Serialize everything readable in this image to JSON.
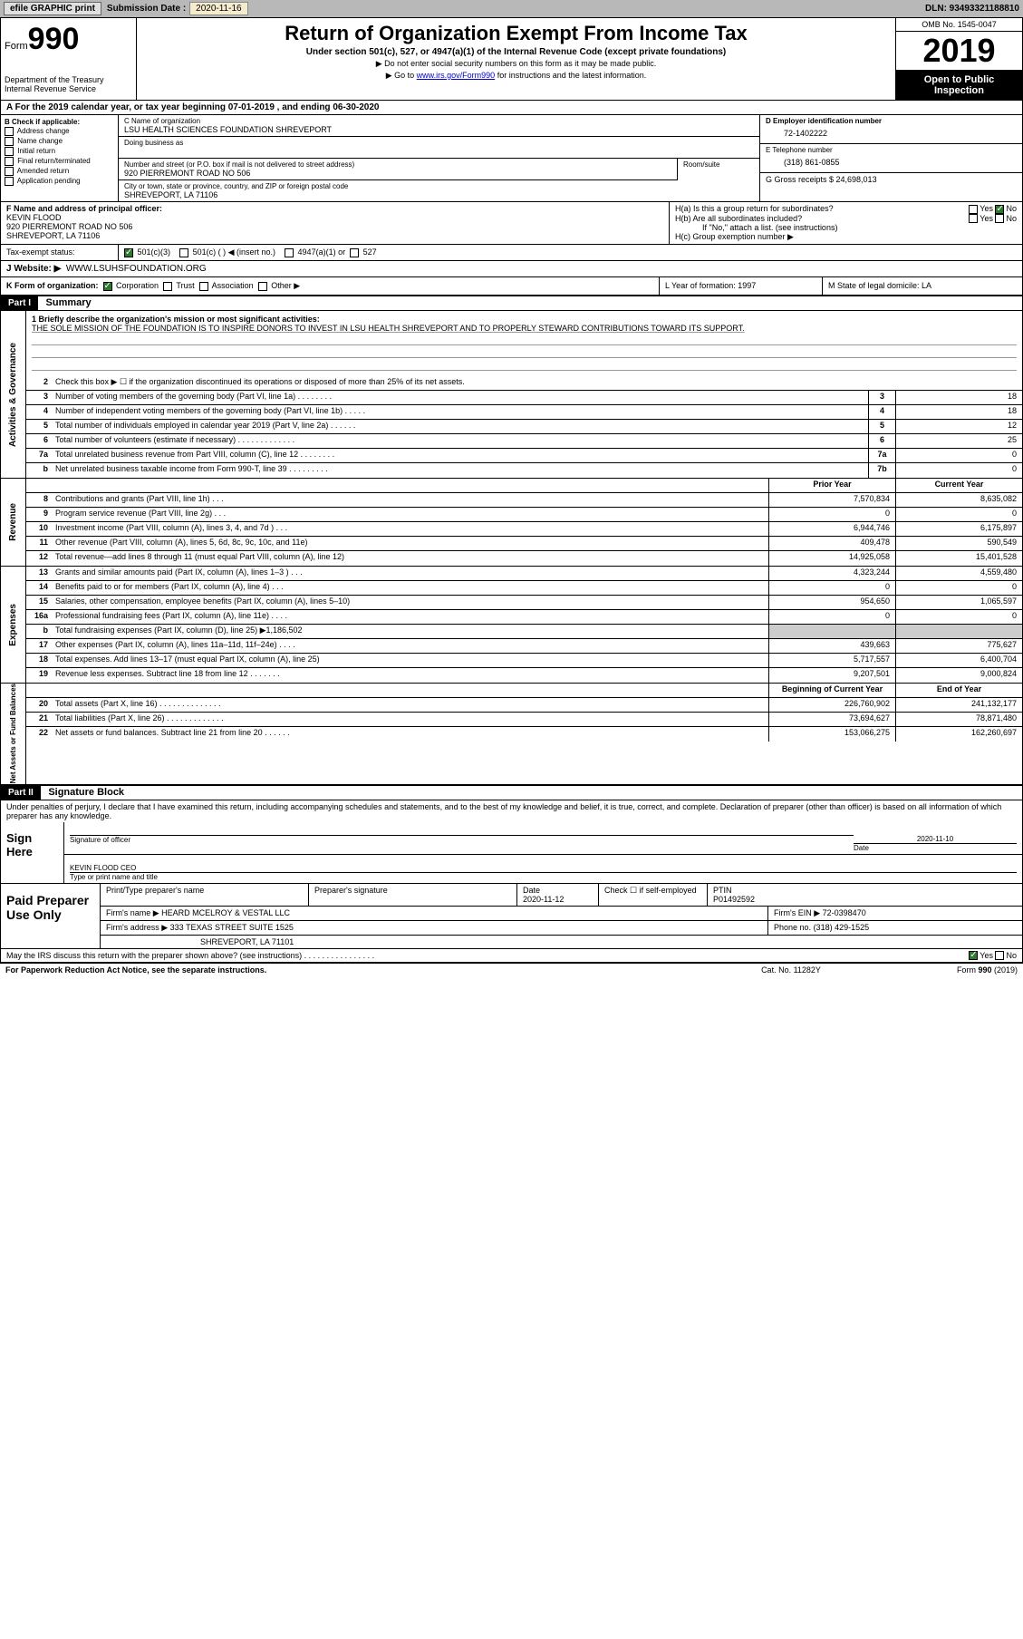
{
  "top": {
    "efile": "efile GRAPHIC print",
    "sub_label": "Submission Date :",
    "sub_date": "2020-11-16",
    "dln": "DLN: 93493321188810"
  },
  "header": {
    "form_word": "Form",
    "form_num": "990",
    "dept": "Department of the Treasury\nInternal Revenue Service",
    "title": "Return of Organization Exempt From Income Tax",
    "subtitle": "Under section 501(c), 527, or 4947(a)(1) of the Internal Revenue Code (except private foundations)",
    "instr1": "▶ Do not enter social security numbers on this form as it may be made public.",
    "instr2_pre": "▶ Go to ",
    "instr2_link": "www.irs.gov/Form990",
    "instr2_post": " for instructions and the latest information.",
    "omb": "OMB No. 1545-0047",
    "year": "2019",
    "inspect": "Open to Public Inspection"
  },
  "rowA": "A For the 2019 calendar year, or tax year beginning 07-01-2019   , and ending 06-30-2020",
  "colB": {
    "title": "B Check if applicable:",
    "items": [
      "Address change",
      "Name change",
      "Initial return",
      "Final return/terminated",
      "Amended return",
      "Application pending"
    ]
  },
  "colC": {
    "name_label": "C Name of organization",
    "name": "LSU HEALTH SCIENCES FOUNDATION SHREVEPORT",
    "dba_label": "Doing business as",
    "addr_label": "Number and street (or P.O. box if mail is not delivered to street address)",
    "room_label": "Room/suite",
    "addr": "920 PIERREMONT ROAD NO 506",
    "city_label": "City or town, state or province, country, and ZIP or foreign postal code",
    "city": "SHREVEPORT, LA  71106"
  },
  "colD": {
    "label": "D Employer identification number",
    "value": "72-1402222"
  },
  "colE": {
    "label": "E Telephone number",
    "value": "(318) 861-0855"
  },
  "colG": {
    "label": "G Gross receipts $ 24,698,013"
  },
  "colF": {
    "label": "F  Name and address of principal officer:",
    "name": "KEVIN FLOOD",
    "addr": "920 PIERREMONT ROAD NO 506\nSHREVEPORT, LA  71106"
  },
  "colH": {
    "a": "H(a)  Is this a group return for subordinates?",
    "b": "H(b)  Are all subordinates included?",
    "b_note": "If \"No,\" attach a list. (see instructions)",
    "c": "H(c)  Group exemption number ▶",
    "yes": "Yes",
    "no": "No"
  },
  "rowI": {
    "label": "Tax-exempt status:",
    "opt1": "501(c)(3)",
    "opt2": "501(c) (   ) ◀ (insert no.)",
    "opt3": "4947(a)(1) or",
    "opt4": "527"
  },
  "rowJ": {
    "label": "J Website: ▶",
    "value": "WWW.LSUHSFOUNDATION.ORG"
  },
  "rowK": {
    "label": "K Form of organization:",
    "opts": [
      "Corporation",
      "Trust",
      "Association",
      "Other ▶"
    ],
    "l": "L Year of formation: 1997",
    "m": "M State of legal domicile: LA"
  },
  "part1": {
    "header": "Part I",
    "title": "Summary",
    "line1_label": "1  Briefly describe the organization's mission or most significant activities:",
    "mission": "THE SOLE MISSION OF THE FOUNDATION IS TO INSPIRE DONORS TO INVEST IN LSU HEALTH SHREVEPORT AND TO PROPERLY STEWARD CONTRIBUTIONS TOWARD ITS SUPPORT.",
    "line2": "Check this box ▶ ☐ if the organization discontinued its operations or disposed of more than 25% of its net assets."
  },
  "sections": {
    "governance": "Activities & Governance",
    "revenue": "Revenue",
    "expenses": "Expenses",
    "netassets": "Net Assets or Fund Balances"
  },
  "gov_lines": [
    {
      "n": "3",
      "desc": "Number of voting members of the governing body (Part VI, line 1a)  .   .   .   .   .   .   .   .",
      "box": "3",
      "val": "18"
    },
    {
      "n": "4",
      "desc": "Number of independent voting members of the governing body (Part VI, line 1b)  .   .   .   .   .",
      "box": "4",
      "val": "18"
    },
    {
      "n": "5",
      "desc": "Total number of individuals employed in calendar year 2019 (Part V, line 2a)  .   .   .   .   .   .",
      "box": "5",
      "val": "12"
    },
    {
      "n": "6",
      "desc": "Total number of volunteers (estimate if necessary)   .   .   .   .   .   .   .   .   .   .   .   .   .",
      "box": "6",
      "val": "25"
    },
    {
      "n": "7a",
      "desc": "Total unrelated business revenue from Part VIII, column (C), line 12  .   .   .   .   .   .   .   .",
      "box": "7a",
      "val": "0"
    },
    {
      "n": "b",
      "desc": "Net unrelated business taxable income from Form 990-T, line 39   .   .   .   .   .   .   .   .   .",
      "box": "7b",
      "val": "0"
    }
  ],
  "col_headers": {
    "prior": "Prior Year",
    "current": "Current Year",
    "begin": "Beginning of Current Year",
    "end": "End of Year"
  },
  "rev_lines": [
    {
      "n": "8",
      "desc": "Contributions and grants (Part VIII, line 1h)   .   .   .",
      "py": "7,570,834",
      "cy": "8,635,082"
    },
    {
      "n": "9",
      "desc": "Program service revenue (Part VIII, line 2g)   .   .   .",
      "py": "0",
      "cy": "0"
    },
    {
      "n": "10",
      "desc": "Investment income (Part VIII, column (A), lines 3, 4, and 7d )   .   .   .",
      "py": "6,944,746",
      "cy": "6,175,897"
    },
    {
      "n": "11",
      "desc": "Other revenue (Part VIII, column (A), lines 5, 6d, 8c, 9c, 10c, and 11e)",
      "py": "409,478",
      "cy": "590,549"
    },
    {
      "n": "12",
      "desc": "Total revenue—add lines 8 through 11 (must equal Part VIII, column (A), line 12)",
      "py": "14,925,058",
      "cy": "15,401,528"
    }
  ],
  "exp_lines": [
    {
      "n": "13",
      "desc": "Grants and similar amounts paid (Part IX, column (A), lines 1–3 )   .   .   .",
      "py": "4,323,244",
      "cy": "4,559,480"
    },
    {
      "n": "14",
      "desc": "Benefits paid to or for members (Part IX, column (A), line 4)   .   .   .",
      "py": "0",
      "cy": "0"
    },
    {
      "n": "15",
      "desc": "Salaries, other compensation, employee benefits (Part IX, column (A), lines 5–10)",
      "py": "954,650",
      "cy": "1,065,597"
    },
    {
      "n": "16a",
      "desc": "Professional fundraising fees (Part IX, column (A), line 11e)   .   .   .   .",
      "py": "0",
      "cy": "0"
    },
    {
      "n": "b",
      "desc": "Total fundraising expenses (Part IX, column (D), line 25) ▶1,186,502",
      "py": "",
      "cy": "",
      "shaded": true
    },
    {
      "n": "17",
      "desc": "Other expenses (Part IX, column (A), lines 11a–11d, 11f–24e)   .   .   .   .",
      "py": "439,663",
      "cy": "775,627"
    },
    {
      "n": "18",
      "desc": "Total expenses. Add lines 13–17 (must equal Part IX, column (A), line 25)",
      "py": "5,717,557",
      "cy": "6,400,704"
    },
    {
      "n": "19",
      "desc": "Revenue less expenses. Subtract line 18 from line 12 .   .   .   .   .   .   .",
      "py": "9,207,501",
      "cy": "9,000,824"
    }
  ],
  "net_lines": [
    {
      "n": "20",
      "desc": "Total assets (Part X, line 16)  .   .   .   .   .   .   .   .   .   .   .   .   .   .",
      "py": "226,760,902",
      "cy": "241,132,177"
    },
    {
      "n": "21",
      "desc": "Total liabilities (Part X, line 26)  .   .   .   .   .   .   .   .   .   .   .   .   .",
      "py": "73,694,627",
      "cy": "78,871,480"
    },
    {
      "n": "22",
      "desc": "Net assets or fund balances. Subtract line 21 from line 20 .   .   .   .   .   .",
      "py": "153,066,275",
      "cy": "162,260,697"
    }
  ],
  "part2": {
    "header": "Part II",
    "title": "Signature Block",
    "decl": "Under penalties of perjury, I declare that I have examined this return, including accompanying schedules and statements, and to the best of my knowledge and belief, it is true, correct, and complete. Declaration of preparer (other than officer) is based on all information of which preparer has any knowledge.",
    "sign_here": "Sign Here",
    "sig_officer": "Signature of officer",
    "sig_date": "2020-11-10",
    "date_label": "Date",
    "officer_name": "KEVIN FLOOD CEO",
    "type_label": "Type or print name and title",
    "paid": "Paid Preparer Use Only",
    "prep_name_label": "Print/Type preparer's name",
    "prep_sig_label": "Preparer's signature",
    "prep_date": "2020-11-12",
    "check_self": "Check ☐ if self-employed",
    "ptin_label": "PTIN",
    "ptin": "P01492592",
    "firm_name_label": "Firm's name   ▶",
    "firm_name": "HEARD MCELROY & VESTAL LLC",
    "firm_ein_label": "Firm's EIN ▶",
    "firm_ein": "72-0398470",
    "firm_addr_label": "Firm's address ▶",
    "firm_addr1": "333 TEXAS STREET SUITE 1525",
    "firm_addr2": "SHREVEPORT, LA  71101",
    "phone_label": "Phone no.",
    "phone": "(318) 429-1525",
    "discuss": "May the IRS discuss this return with the preparer shown above? (see instructions)   .   .   .   .   .   .   .   .   .   .   .   .   .   .   .   ."
  },
  "footer": {
    "left": "For Paperwork Reduction Act Notice, see the separate instructions.",
    "mid": "Cat. No. 11282Y",
    "right": "Form 990 (2019)"
  }
}
